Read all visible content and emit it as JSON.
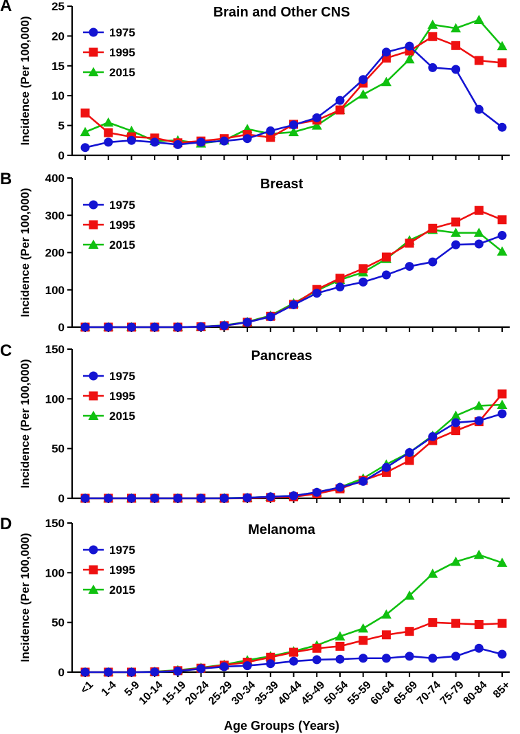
{
  "x_categories": [
    "<1",
    "1-4",
    "5-9",
    "10-14",
    "15-19",
    "20-24",
    "25-29",
    "30-34",
    "35-39",
    "40-44",
    "45-49",
    "50-54",
    "55-59",
    "60-64",
    "65-69",
    "70-74",
    "75-79",
    "80-84",
    "85+"
  ],
  "x_label": "Age Groups (Years)",
  "colors": {
    "1975": "#1414d2",
    "1995": "#ee1010",
    "2015": "#10c010"
  },
  "chart_data": [
    {
      "type": "line",
      "panel": "A",
      "title": "Brain and Other CNS",
      "ylabel": "Incidence (Per 100,000)",
      "ylim": [
        0,
        25
      ],
      "yticks": [
        0,
        5,
        10,
        15,
        20,
        25
      ],
      "legend": "top-left",
      "series": [
        {
          "name": "1975",
          "marker": "circle",
          "values": [
            1.3,
            2.2,
            2.5,
            2.2,
            1.8,
            2.2,
            2.4,
            2.8,
            4.1,
            5.1,
            6.3,
            9.2,
            12.7,
            17.3,
            18.3,
            14.7,
            14.4,
            7.7,
            4.7
          ]
        },
        {
          "name": "1995",
          "marker": "square",
          "values": [
            7.1,
            3.8,
            3.1,
            2.9,
            2.1,
            2.4,
            2.8,
            3.5,
            3.0,
            5.2,
            5.9,
            7.6,
            12.1,
            16.3,
            17.5,
            19.9,
            18.4,
            15.9,
            15.5
          ]
        },
        {
          "name": "2015",
          "marker": "triangle",
          "values": [
            3.9,
            5.5,
            4.1,
            2.4,
            2.5,
            2.0,
            2.5,
            4.4,
            3.6,
            3.9,
            5.0,
            7.6,
            10.2,
            12.3,
            16.1,
            21.9,
            21.3,
            22.7,
            18.3
          ]
        }
      ]
    },
    {
      "type": "line",
      "panel": "B",
      "title": "Breast",
      "ylabel": "Incidence (Per 100,000)",
      "ylim": [
        0,
        400
      ],
      "yticks": [
        0,
        100,
        200,
        300,
        400
      ],
      "legend": "top-left",
      "series": [
        {
          "name": "1975",
          "marker": "circle",
          "values": [
            0,
            0,
            0,
            0,
            0,
            1,
            4,
            13,
            28,
            60,
            91,
            108,
            121,
            140,
            163,
            175,
            221,
            223,
            246
          ]
        },
        {
          "name": "1995",
          "marker": "square",
          "values": [
            0,
            0,
            0,
            0,
            0,
            1,
            4,
            13,
            29,
            61,
            101,
            131,
            157,
            188,
            225,
            265,
            282,
            313,
            288
          ]
        },
        {
          "name": "2015",
          "marker": "triangle",
          "values": [
            0,
            0,
            0,
            0,
            0,
            1,
            5,
            14,
            31,
            64,
            98,
            127,
            147,
            183,
            233,
            261,
            253,
            253,
            203
          ]
        }
      ]
    },
    {
      "type": "line",
      "panel": "C",
      "title": "Pancreas",
      "ylabel": "Incidence (Per 100,000)",
      "ylim": [
        0,
        150
      ],
      "yticks": [
        0,
        50,
        100,
        150
      ],
      "legend": "top-left",
      "series": [
        {
          "name": "1975",
          "marker": "circle",
          "values": [
            0,
            0,
            0,
            0,
            0,
            0,
            0,
            0.5,
            1.5,
            2.5,
            6,
            11,
            17,
            31,
            46,
            62,
            76,
            78,
            85
          ]
        },
        {
          "name": "1995",
          "marker": "square",
          "values": [
            0,
            0,
            0,
            0,
            0,
            0,
            0,
            0.3,
            0.8,
            1.5,
            4.5,
            9.5,
            18,
            26,
            38,
            58,
            68,
            77,
            105
          ]
        },
        {
          "name": "2015",
          "marker": "triangle",
          "values": [
            0,
            0,
            0,
            0,
            0,
            0,
            0.2,
            0.5,
            1.5,
            2.5,
            6,
            11,
            20,
            34,
            46,
            63,
            83,
            93,
            94
          ]
        }
      ]
    },
    {
      "type": "line",
      "panel": "D",
      "title": "Melanoma",
      "ylabel": "Incidence (Per 100,000)",
      "ylim": [
        0,
        150
      ],
      "yticks": [
        0,
        50,
        100,
        150
      ],
      "legend": "top-left",
      "series": [
        {
          "name": "1975",
          "marker": "circle",
          "values": [
            0,
            0,
            0,
            0.2,
            1,
            3.5,
            5.5,
            6.5,
            8.5,
            11,
            12.5,
            13,
            14,
            14,
            16,
            14,
            16,
            24,
            18
          ]
        },
        {
          "name": "1995",
          "marker": "square",
          "values": [
            0,
            0,
            0,
            0.3,
            1.5,
            4,
            7,
            10,
            15,
            20,
            24,
            26,
            32,
            37.5,
            41,
            50,
            49,
            48,
            49
          ]
        },
        {
          "name": "2015",
          "marker": "triangle",
          "values": [
            0,
            0,
            0,
            0.5,
            2,
            4.5,
            7.5,
            12,
            16,
            21,
            27,
            36,
            44,
            58,
            77,
            99,
            111,
            118,
            110
          ]
        }
      ]
    }
  ]
}
